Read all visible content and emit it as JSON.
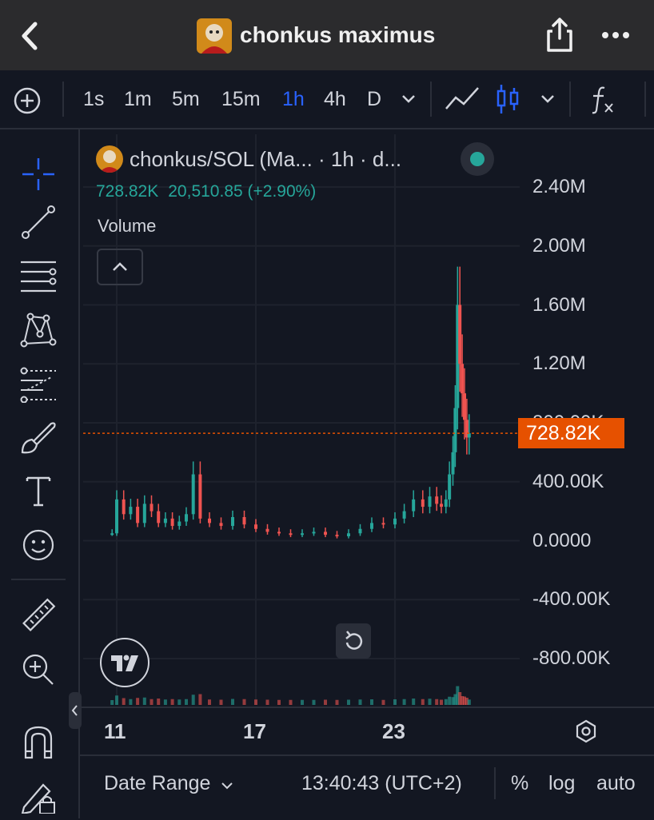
{
  "topbar": {
    "title": "chonkus maximus",
    "back_icon": "chevron-left-icon",
    "share_icon": "share-icon",
    "more_icon": "more-icon"
  },
  "toolbar": {
    "add_icon": "plus-circle-icon",
    "intervals": [
      "1s",
      "1m",
      "5m",
      "15m",
      "1h",
      "4h",
      "D"
    ],
    "active_interval": "1h",
    "chart_type_icons": [
      "line-chart-icon",
      "candlestick-icon"
    ],
    "indicator_icon": "fx-icon"
  },
  "left_tools": [
    "crosshair-icon",
    "trendline-icon",
    "fib-icon",
    "pattern-icon",
    "prediction-icon",
    "brush-icon",
    "text-icon",
    "emoji-icon",
    "ruler-icon",
    "zoom-icon",
    "magnet-icon",
    "lock-icon"
  ],
  "legend": {
    "title": "chonkus/SOL (Ma... · 1h · d...",
    "value": "728.82K",
    "change": "20,510.85 (+2.90%)",
    "volume_label": "Volume"
  },
  "price_tag": "728.82K",
  "bottom": {
    "date_range": "Date Range",
    "time": "13:40:43 (UTC+2)",
    "percent": "%",
    "log": "log",
    "auto": "auto"
  },
  "chart_data": {
    "type": "line",
    "y_ticks": [
      "2.40M",
      "2.00M",
      "1.60M",
      "1.20M",
      "800.00K",
      "400.00K",
      "0.0000",
      "-400.00K",
      "-800.00K"
    ],
    "x_ticks": [
      "11",
      "17",
      "23"
    ],
    "ylim": [
      -1000000,
      2600000
    ],
    "current_price": 728820,
    "colors": {
      "up": "#26a69a",
      "down": "#ef5350",
      "price_line": "#e65100"
    },
    "x": [
      10.8,
      11.0,
      11.3,
      11.6,
      11.9,
      12.2,
      12.5,
      12.8,
      13.1,
      13.4,
      13.7,
      14.0,
      14.3,
      14.6,
      15.0,
      15.5,
      16.0,
      16.5,
      17.0,
      17.5,
      18.0,
      18.5,
      19.0,
      19.5,
      20.0,
      20.5,
      21.0,
      21.5,
      22.0,
      22.5,
      23.0,
      23.4,
      23.8,
      24.2,
      24.5,
      24.8,
      25.0,
      25.2,
      25.35,
      25.5,
      25.6,
      25.7,
      25.8,
      25.9,
      26.0,
      26.1,
      26.2
    ],
    "values": [
      50000,
      280000,
      180000,
      230000,
      120000,
      250000,
      200000,
      120000,
      150000,
      100000,
      130000,
      180000,
      450000,
      150000,
      120000,
      100000,
      160000,
      110000,
      80000,
      60000,
      50000,
      40000,
      50000,
      60000,
      40000,
      30000,
      50000,
      80000,
      120000,
      110000,
      150000,
      200000,
      280000,
      230000,
      300000,
      250000,
      230000,
      280000,
      450000,
      600000,
      900000,
      1600000,
      1200000,
      1000000,
      820000,
      700000,
      728820
    ]
  }
}
